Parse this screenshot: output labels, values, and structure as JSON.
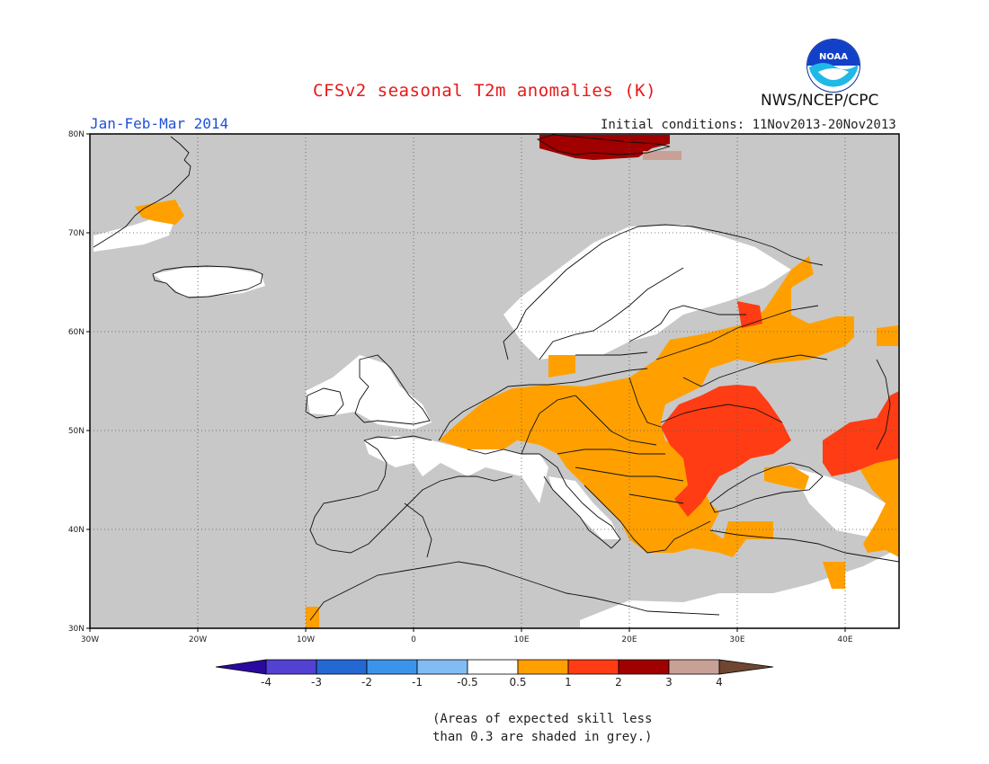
{
  "header": {
    "title": "CFSv2 seasonal T2m anomalies (K)",
    "period": "Jan-Feb-Mar 2014",
    "initial_conditions": "Initial conditions: 11Nov2013-20Nov2013",
    "organization": "NWS/NCEP/CPC",
    "logo_text": "NOAA"
  },
  "map": {
    "lat_labels": [
      "80N",
      "70N",
      "60N",
      "50N",
      "40N",
      "30N"
    ],
    "lon_labels": [
      "30W",
      "20W",
      "10W",
      "0",
      "10E",
      "20E",
      "30E",
      "40E"
    ]
  },
  "legend": {
    "labels": [
      "-4",
      "-3",
      "-2",
      "-1",
      "-0.5",
      "0.5",
      "1",
      "2",
      "3",
      "4"
    ],
    "colors": [
      "#2a0a9e",
      "#5241d2",
      "#2468d4",
      "#3c94ea",
      "#82bcf4",
      "#ffffff",
      "#ffa000",
      "#ff3c14",
      "#a00000",
      "#c8a096",
      "#6e4632"
    ]
  },
  "note": {
    "line1": "(Areas of expected skill less",
    "line2": "than 0.3 are shaded in grey.)"
  },
  "colors": {
    "skill_grey": "#c8c8c8",
    "title": "#e81818",
    "period": "#2050d8"
  }
}
